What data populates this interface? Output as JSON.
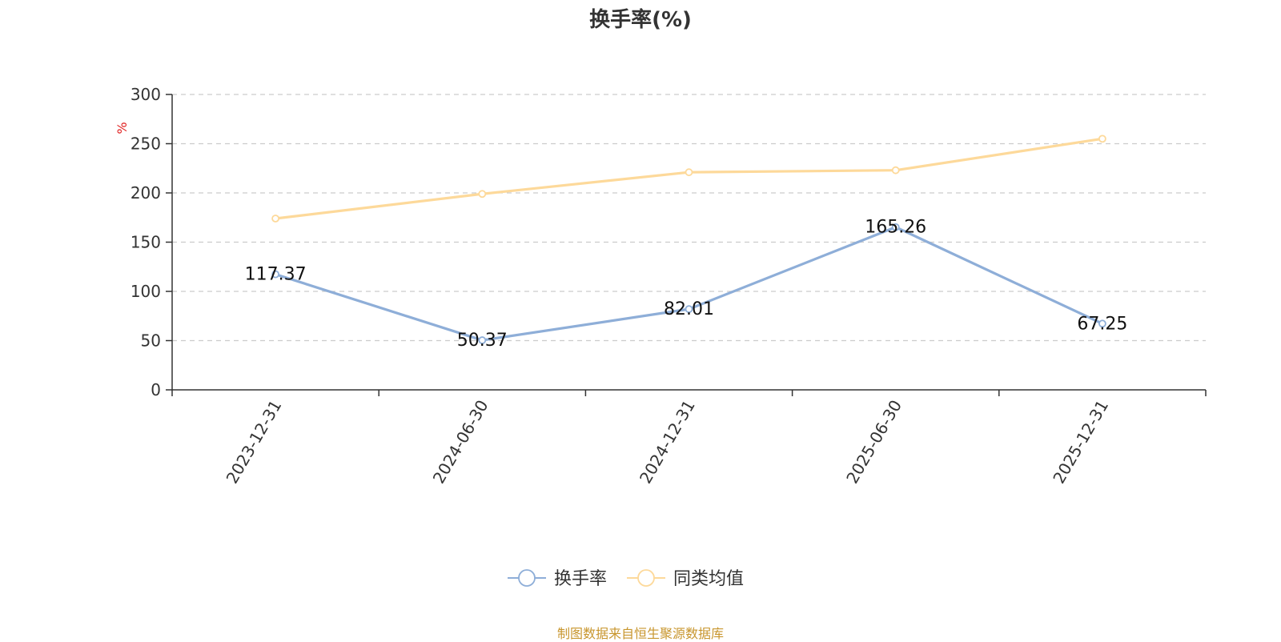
{
  "chart_data": {
    "type": "line",
    "title": "换手率(%)",
    "ylabel": "%",
    "ylim": [
      0,
      300
    ],
    "yticks": [
      0,
      50,
      100,
      150,
      200,
      250,
      300
    ],
    "categories": [
      "2023-12-31",
      "2024-06-30",
      "2024-12-31",
      "2025-06-30",
      "2025-12-31"
    ],
    "series": [
      {
        "name": "换手率",
        "color": "#8eaed8",
        "values": [
          117.37,
          50.37,
          82.01,
          165.26,
          67.25
        ],
        "labels": [
          "117.37",
          "50.37",
          "82.01",
          "165.26",
          "67.25"
        ]
      },
      {
        "name": "同类均值",
        "color": "#fdd99a",
        "values": [
          174,
          199,
          221,
          223,
          255
        ]
      }
    ],
    "grid": true,
    "legend_position": "bottom"
  },
  "source_text": "制图数据来自恒生聚源数据库"
}
